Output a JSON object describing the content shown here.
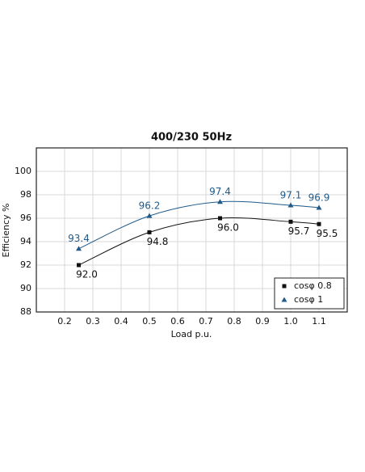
{
  "chart_data": {
    "type": "line",
    "title": "400/230 50Hz",
    "x_label": "Load p.u.",
    "y_label": "Efficiency %",
    "x": [
      0.25,
      0.5,
      0.75,
      1,
      1.1
    ],
    "series": [
      {
        "name": "cosφ 0.8",
        "color": "#111111",
        "marker": "square",
        "values": [
          92.0,
          94.8,
          96.0,
          95.7,
          95.5
        ],
        "value_labels": [
          "92.0",
          "94.8",
          "96.0",
          "95.7",
          "95.5"
        ]
      },
      {
        "name": "cosφ 1",
        "color": "#1f5a8a",
        "marker": "triangle",
        "values": [
          93.4,
          96.2,
          97.4,
          97.1,
          96.9
        ],
        "value_labels": [
          "93.4",
          "96.2",
          "97.4",
          "97.1",
          "96.9"
        ]
      }
    ],
    "xlim": [
      0.1,
      1.2
    ],
    "ylim": [
      88,
      102
    ],
    "xticks": [
      0.2,
      0.3,
      0.4,
      0.5,
      0.6,
      0.7,
      0.8,
      0.9,
      {
        "value": 1,
        "label": "1.0"
      },
      1.1
    ],
    "yticks": [
      88,
      90,
      92,
      94,
      96,
      98,
      100
    ],
    "grid": true,
    "legend": "lower right"
  }
}
